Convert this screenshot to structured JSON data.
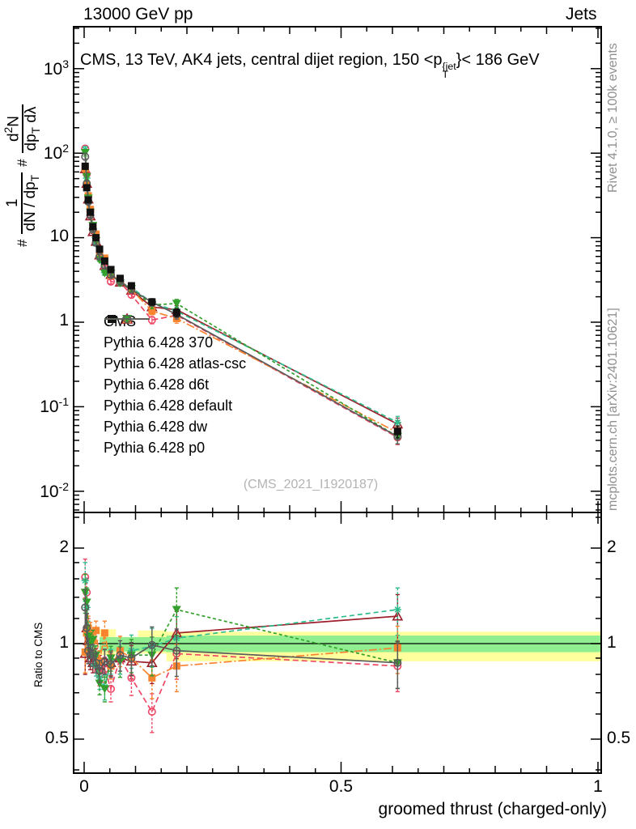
{
  "header": {
    "beam": "13000 GeV pp",
    "process": "Jets"
  },
  "titles": {
    "main_prefix": "CMS, 13 TeV, AK4 jets, central dijet region, 150 <p",
    "main_sup": "{jet",
    "main_sub": "T",
    "main_suffix": "}< 186 GeV",
    "watermark": "(CMS_2021_I1920187)",
    "rivet": "Rivet 4.1.0, ≥ 100k events",
    "mcplots": "mcplots.cern.ch [arXiv:2401.10621]",
    "xlabel": "groomed thrust (charged-only)",
    "ratio_ylabel": "Ratio to CMS"
  },
  "ylabel_parts": {
    "hash1": "#",
    "f1_num": "1",
    "f1_den_pre": "dN / dp",
    "f1_den_sub": "T",
    "hash2": "#",
    "f2_num_pre": "d",
    "f2_num_sup": "2",
    "f2_num_post": "N",
    "f2_den_pre": "dp",
    "f2_den_sub": "T",
    "f2_den_post": " dλ"
  },
  "axis": {
    "x_ticks": [
      {
        "label": "0",
        "x": 0
      },
      {
        "label": "0.5",
        "x": 0.5
      },
      {
        "label": "1",
        "x": 1
      }
    ],
    "main_y_ticks": [
      {
        "base": "10",
        "exp": "3",
        "v": 1000
      },
      {
        "base": "10",
        "exp": "2",
        "v": 100
      },
      {
        "base": "10",
        "exp": "",
        "v": 10
      },
      {
        "base": "1",
        "exp": "",
        "v": 1
      },
      {
        "base": "10",
        "exp": "-1",
        "v": 0.1
      },
      {
        "base": "10",
        "exp": "-2",
        "v": 0.01
      }
    ],
    "ratio_y_ticks": [
      {
        "label": "2",
        "v": 2
      },
      {
        "label": "1",
        "v": 1
      },
      {
        "label": "0.5",
        "v": 0.5
      }
    ]
  },
  "chart_data": {
    "type": "line",
    "title": "CMS, 13 TeV, AK4 jets, central dijet region, 150 < pT{jet} < 186 GeV",
    "xlabel": "groomed thrust (charged-only)",
    "ylabel": "#1/(dN/dpT) #d2N/(dpT dlambda)",
    "ratio_ylabel": "Ratio to CMS",
    "x_range_main": [
      -0.0205,
      1.006
    ],
    "y_range_main_log": [
      0.0056,
      3100
    ],
    "y_range_ratio_log": [
      0.39,
      2.59
    ],
    "x": [
      0.002,
      0.005,
      0.008,
      0.012,
      0.017,
      0.023,
      0.03,
      0.04,
      0.052,
      0.07,
      0.092,
      0.132,
      0.18,
      0.61
    ],
    "cms": {
      "id": "cms",
      "label": "CMS",
      "color": "#111111",
      "marker": "square-filled",
      "values": [
        70,
        39,
        28,
        20,
        13.5,
        10.0,
        7.3,
        5.3,
        4.2,
        3.3,
        2.7,
        1.74,
        1.3,
        0.051
      ]
    },
    "series": [
      {
        "id": "pythia-370",
        "label": "Pythia 6.428 370",
        "color": "#9b1e28",
        "dash": null,
        "marker": "triangle-up-open",
        "ratio": [
          0.93,
          1.12,
          1.02,
          0.9,
          0.87,
          0.9,
          0.85,
          0.88,
          0.87,
          0.9,
          0.88,
          0.87,
          1.08,
          1.22
        ]
      },
      {
        "id": "pythia-atlas-csc",
        "label": "Pythia 6.428 atlas-csc",
        "color": "#ef4866",
        "dash": [
          7,
          4
        ],
        "marker": "circle-open",
        "ratio": [
          1.62,
          1.45,
          1.1,
          1.02,
          0.93,
          0.88,
          0.8,
          0.83,
          0.72,
          0.9,
          0.78,
          0.61,
          0.93,
          0.85
        ]
      },
      {
        "id": "pythia-d6t",
        "label": "Pythia 6.428 d6t",
        "color": "#2ebd8e",
        "dash": [
          6,
          4
        ],
        "marker": "star",
        "ratio": [
          1.58,
          1.3,
          1.08,
          1.0,
          0.92,
          0.85,
          0.78,
          0.73,
          0.88,
          0.9,
          0.95,
          0.98,
          1.04,
          1.28
        ]
      },
      {
        "id": "pythia-default",
        "label": "Pythia 6.428 default",
        "color": "#f9842f",
        "dash": [
          10,
          3,
          2,
          3
        ],
        "marker": "square-filled",
        "ratio": [
          0.94,
          1.08,
          1.12,
          1.08,
          1.02,
          1.1,
          0.88,
          1.08,
          0.85,
          0.95,
          0.9,
          0.78,
          0.85,
          0.97
        ]
      },
      {
        "id": "pythia-dw",
        "label": "Pythia 6.428 dw",
        "color": "#33a02c",
        "dash": [
          4,
          3
        ],
        "marker": "triangle-down-filled",
        "ratio": [
          1.45,
          1.35,
          1.05,
          1.0,
          1.03,
          0.92,
          0.75,
          0.72,
          0.9,
          0.88,
          0.92,
          0.92,
          1.28,
          0.87
        ]
      },
      {
        "id": "pythia-p0",
        "label": "Pythia 6.428 p0",
        "color": "#5a5a5a",
        "dash": null,
        "marker": "circle-open",
        "ratio": [
          1.3,
          1.12,
          0.95,
          0.92,
          0.93,
          0.87,
          0.82,
          0.88,
          0.86,
          0.92,
          0.9,
          0.99,
          0.95,
          0.87
        ]
      }
    ],
    "note": "series absolute values = cms.values × series.ratio per bin",
    "ratio_err_frac": [
      0.14,
      0.11,
      0.09,
      0.08,
      0.07,
      0.07,
      0.08,
      0.09,
      0.09,
      0.11,
      0.12,
      0.14,
      0.17,
      0.17
    ],
    "main_err_frac": [
      0.09,
      0.07,
      0.06,
      0.05,
      0.05,
      0.05,
      0.05,
      0.06,
      0.06,
      0.07,
      0.08,
      0.1,
      0.12,
      0.18
    ],
    "bands": {
      "yellow_color": "#ffff9e",
      "green_color": "#90ee90",
      "yellow_segments": [
        {
          "x0": 0.03,
          "x1": 0.062,
          "lo": 0.92,
          "hi": 1.11
        },
        {
          "x0": 0.062,
          "x1": 0.105,
          "lo": 0.94,
          "hi": 1.05
        },
        {
          "x0": 0.105,
          "x1": 0.16,
          "lo": 0.93,
          "hi": 1.1
        },
        {
          "x0": 0.16,
          "x1": 1.006,
          "lo": 0.88,
          "hi": 1.09
        }
      ],
      "green_segments": [
        {
          "x0": 0.03,
          "x1": 0.16,
          "lo": 0.945,
          "hi": 1.048
        },
        {
          "x0": 0.16,
          "x1": 1.006,
          "lo": 0.94,
          "hi": 1.06
        }
      ]
    },
    "legend_position": "left-middle",
    "grid": false
  }
}
